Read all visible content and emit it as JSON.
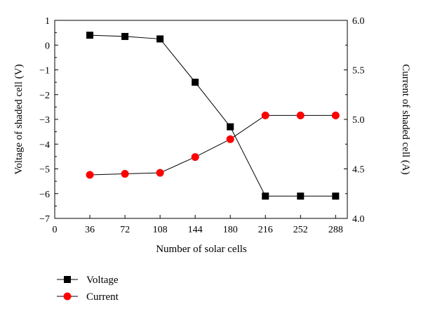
{
  "chart_data": {
    "type": "line",
    "x": [
      36,
      72,
      108,
      144,
      180,
      216,
      252,
      288
    ],
    "xlabel": "Number of solar cells",
    "ylabel_left": "Voltage of shaded cell (V)",
    "ylabel_right": "Current of shaded cell (A)",
    "xlim": [
      0,
      300
    ],
    "ylim_left": [
      -7,
      1
    ],
    "ylim_right": [
      4.0,
      6.0
    ],
    "x_ticks": [
      "0",
      "36",
      "72",
      "108",
      "144",
      "180",
      "216",
      "252",
      "288"
    ],
    "y_left_ticks": [
      "−7",
      "−6",
      "−5",
      "−4",
      "−3",
      "−2",
      "−1",
      "0",
      "1"
    ],
    "y_right_ticks": [
      "4.0",
      "4.5",
      "5.0",
      "5.5",
      "6.0"
    ],
    "grid": false,
    "legend_position": "bottom-left",
    "series": [
      {
        "name": "Voltage",
        "axis": "left",
        "marker": "square",
        "color": "#000000",
        "values": [
          0.4,
          0.35,
          0.25,
          -1.5,
          -3.3,
          -6.1,
          -6.1,
          -6.1
        ]
      },
      {
        "name": "Current",
        "axis": "right",
        "marker": "circle",
        "color": "#ff0000",
        "values": [
          4.44,
          4.45,
          4.46,
          4.62,
          4.8,
          5.04,
          5.04,
          5.04
        ]
      }
    ]
  }
}
